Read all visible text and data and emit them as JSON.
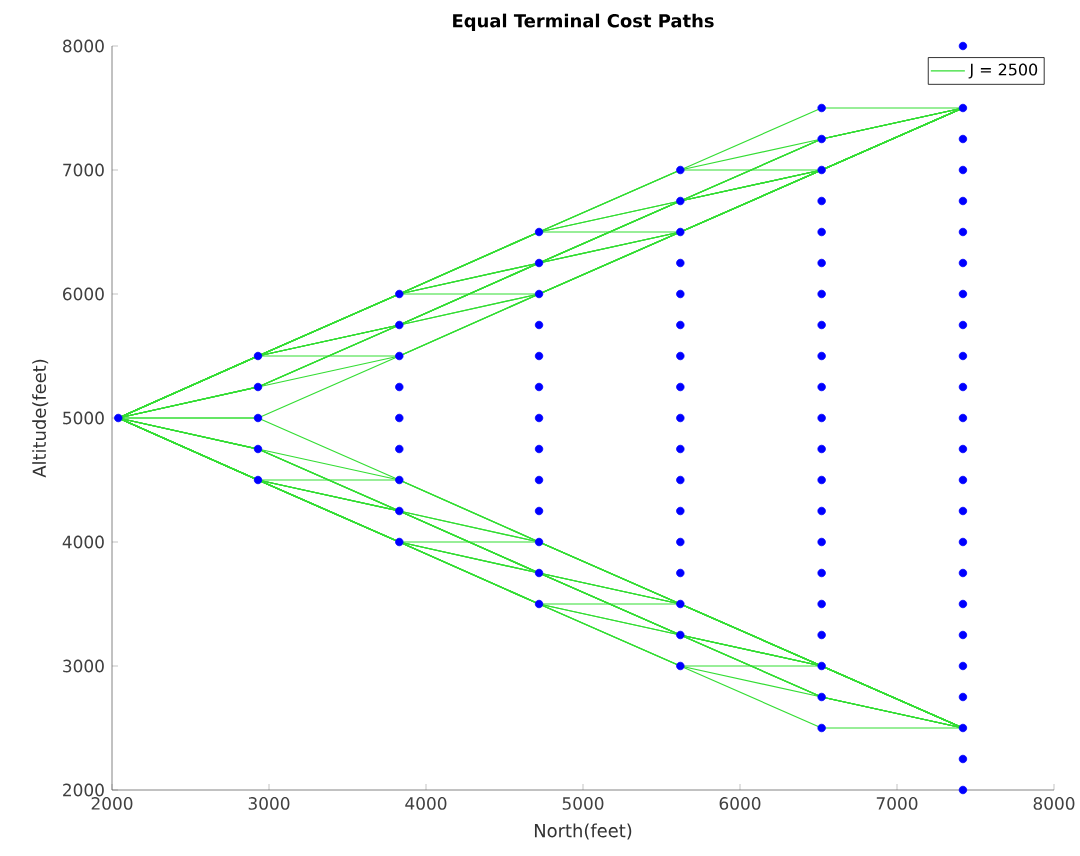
{
  "chart_data": {
    "type": "line",
    "title": "Equal Terminal Cost Paths",
    "xlabel": "North(feet)",
    "ylabel": "Altitude(feet)",
    "xlim": [
      2000,
      8000
    ],
    "ylim": [
      2000,
      8000
    ],
    "xticks": [
      2000,
      3000,
      4000,
      5000,
      6000,
      7000,
      8000
    ],
    "yticks": [
      2000,
      3000,
      4000,
      5000,
      6000,
      7000,
      8000
    ],
    "legend": "top right",
    "marker": "none",
    "line_style": "solid",
    "x": [
      2040,
      2930,
      3830,
      4720,
      5620,
      6520,
      7420
    ],
    "series": [
      {
        "name": "J = 2500",
        "color": "#33dd33",
        "values": [
          5000,
          5500,
          6000,
          6500,
          7000,
          7500,
          7500
        ]
      },
      {
        "color": "#33dd33",
        "values": [
          5000,
          5500,
          6000,
          6500,
          7000,
          7250,
          7500
        ]
      },
      {
        "color": "#33dd33",
        "values": [
          5000,
          5500,
          6000,
          6500,
          7000,
          7000,
          7500
        ]
      },
      {
        "color": "#33dd33",
        "values": [
          5000,
          5500,
          6000,
          6500,
          6750,
          7250,
          7500
        ]
      },
      {
        "color": "#33dd33",
        "values": [
          5000,
          5500,
          6000,
          6500,
          6750,
          7000,
          7500
        ]
      },
      {
        "color": "#33dd33",
        "values": [
          5000,
          5500,
          6000,
          6500,
          6500,
          7000,
          7500
        ]
      },
      {
        "color": "#33dd33",
        "values": [
          5000,
          5500,
          6000,
          6250,
          6750,
          7250,
          7500
        ]
      },
      {
        "color": "#33dd33",
        "values": [
          5000,
          5500,
          6000,
          6250,
          6750,
          7000,
          7500
        ]
      },
      {
        "color": "#33dd33",
        "values": [
          5000,
          5500,
          6000,
          6250,
          6500,
          7000,
          7500
        ]
      },
      {
        "color": "#33dd33",
        "values": [
          5000,
          5500,
          6000,
          6000,
          6500,
          7000,
          7500
        ]
      },
      {
        "color": "#33dd33",
        "values": [
          5000,
          5500,
          5750,
          6250,
          6750,
          7250,
          7500
        ]
      },
      {
        "color": "#33dd33",
        "values": [
          5000,
          5500,
          5750,
          6250,
          6750,
          7000,
          7500
        ]
      },
      {
        "color": "#33dd33",
        "values": [
          5000,
          5500,
          5750,
          6250,
          6500,
          7000,
          7500
        ]
      },
      {
        "color": "#33dd33",
        "values": [
          5000,
          5500,
          5750,
          6000,
          6500,
          7000,
          7500
        ]
      },
      {
        "color": "#33dd33",
        "values": [
          5000,
          5500,
          5500,
          6000,
          6500,
          7000,
          7500
        ]
      },
      {
        "color": "#33dd33",
        "values": [
          5000,
          5250,
          5750,
          6250,
          6750,
          7250,
          7500
        ]
      },
      {
        "color": "#33dd33",
        "values": [
          5000,
          5250,
          5750,
          6250,
          6750,
          7000,
          7500
        ]
      },
      {
        "color": "#33dd33",
        "values": [
          5000,
          5250,
          5750,
          6250,
          6500,
          7000,
          7500
        ]
      },
      {
        "color": "#33dd33",
        "values": [
          5000,
          5250,
          5750,
          6000,
          6500,
          7000,
          7500
        ]
      },
      {
        "color": "#33dd33",
        "values": [
          5000,
          5250,
          5500,
          6000,
          6500,
          7000,
          7500
        ]
      },
      {
        "color": "#33dd33",
        "values": [
          5000,
          5000,
          5500,
          6000,
          6500,
          7000,
          7500
        ]
      },
      {
        "color": "#33dd33",
        "values": [
          5000,
          4500,
          4000,
          3500,
          3000,
          2500,
          2500
        ]
      },
      {
        "color": "#33dd33",
        "values": [
          5000,
          4500,
          4000,
          3500,
          3000,
          2750,
          2500
        ]
      },
      {
        "color": "#33dd33",
        "values": [
          5000,
          4500,
          4000,
          3500,
          3000,
          3000,
          2500
        ]
      },
      {
        "color": "#33dd33",
        "values": [
          5000,
          4500,
          4000,
          3500,
          3250,
          2750,
          2500
        ]
      },
      {
        "color": "#33dd33",
        "values": [
          5000,
          4500,
          4000,
          3500,
          3250,
          3000,
          2500
        ]
      },
      {
        "color": "#33dd33",
        "values": [
          5000,
          4500,
          4000,
          3500,
          3500,
          3000,
          2500
        ]
      },
      {
        "color": "#33dd33",
        "values": [
          5000,
          4500,
          4000,
          3750,
          3250,
          2750,
          2500
        ]
      },
      {
        "color": "#33dd33",
        "values": [
          5000,
          4500,
          4000,
          3750,
          3250,
          3000,
          2500
        ]
      },
      {
        "color": "#33dd33",
        "values": [
          5000,
          4500,
          4000,
          3750,
          3500,
          3000,
          2500
        ]
      },
      {
        "color": "#33dd33",
        "values": [
          5000,
          4500,
          4000,
          4000,
          3500,
          3000,
          2500
        ]
      },
      {
        "color": "#33dd33",
        "values": [
          5000,
          4500,
          4250,
          3750,
          3250,
          2750,
          2500
        ]
      },
      {
        "color": "#33dd33",
        "values": [
          5000,
          4500,
          4250,
          3750,
          3250,
          3000,
          2500
        ]
      },
      {
        "color": "#33dd33",
        "values": [
          5000,
          4500,
          4250,
          3750,
          3500,
          3000,
          2500
        ]
      },
      {
        "color": "#33dd33",
        "values": [
          5000,
          4500,
          4250,
          4000,
          3500,
          3000,
          2500
        ]
      },
      {
        "color": "#33dd33",
        "values": [
          5000,
          4500,
          4500,
          4000,
          3500,
          3000,
          2500
        ]
      },
      {
        "color": "#33dd33",
        "values": [
          5000,
          4750,
          4250,
          3750,
          3250,
          2750,
          2500
        ]
      },
      {
        "color": "#33dd33",
        "values": [
          5000,
          4750,
          4250,
          3750,
          3250,
          3000,
          2500
        ]
      },
      {
        "color": "#33dd33",
        "values": [
          5000,
          4750,
          4250,
          3750,
          3500,
          3000,
          2500
        ]
      },
      {
        "color": "#33dd33",
        "values": [
          5000,
          4750,
          4250,
          4000,
          3500,
          3000,
          2500
        ]
      },
      {
        "color": "#33dd33",
        "values": [
          5000,
          4750,
          4500,
          4000,
          3500,
          3000,
          2500
        ]
      },
      {
        "color": "#33dd33",
        "values": [
          5000,
          5000,
          4500,
          4000,
          3500,
          3000,
          2500
        ]
      },
      {
        "type": "scatter",
        "color": "#0000ff",
        "x": [
          2040,
          2930,
          2930,
          2930,
          2930,
          2930,
          3830,
          3830,
          3830,
          3830,
          3830,
          3830,
          3830,
          3830,
          3830,
          4720,
          4720,
          4720,
          4720,
          4720,
          4720,
          4720,
          4720,
          4720,
          4720,
          4720,
          4720,
          4720,
          5620,
          5620,
          5620,
          5620,
          5620,
          5620,
          5620,
          5620,
          5620,
          5620,
          5620,
          5620,
          5620,
          5620,
          5620,
          5620,
          5620,
          6520,
          6520,
          6520,
          6520,
          6520,
          6520,
          6520,
          6520,
          6520,
          6520,
          6520,
          6520,
          6520,
          6520,
          6520,
          6520,
          6520,
          6520,
          6520,
          6520,
          6520,
          7420,
          7420,
          7420,
          7420,
          7420,
          7420,
          7420,
          7420,
          7420,
          7420,
          7420,
          7420,
          7420,
          7420,
          7420,
          7420,
          7420,
          7420,
          7420,
          7420,
          7420,
          7420,
          7420,
          7420
        ],
        "values": [
          5000,
          4500,
          4750,
          5000,
          5250,
          5500,
          4000,
          4250,
          4500,
          4750,
          5000,
          5250,
          5500,
          5750,
          6000,
          3500,
          3750,
          4000,
          4250,
          4500,
          4750,
          5000,
          5250,
          5500,
          5750,
          6000,
          6250,
          6500,
          3000,
          3250,
          3500,
          3750,
          4000,
          4250,
          4500,
          4750,
          5000,
          5250,
          5500,
          5750,
          6000,
          6250,
          6500,
          6750,
          7000,
          2500,
          2750,
          3000,
          3250,
          3500,
          3750,
          4000,
          4250,
          4500,
          4750,
          5000,
          5250,
          5500,
          5750,
          6000,
          6250,
          6500,
          6750,
          7000,
          7250,
          7500,
          2000,
          2250,
          2500,
          2750,
          3000,
          3250,
          3500,
          3750,
          4000,
          4250,
          4500,
          4750,
          5000,
          5250,
          5500,
          5750,
          6000,
          6250,
          6500,
          6750,
          7000,
          7250,
          7500,
          8000
        ]
      }
    ]
  }
}
